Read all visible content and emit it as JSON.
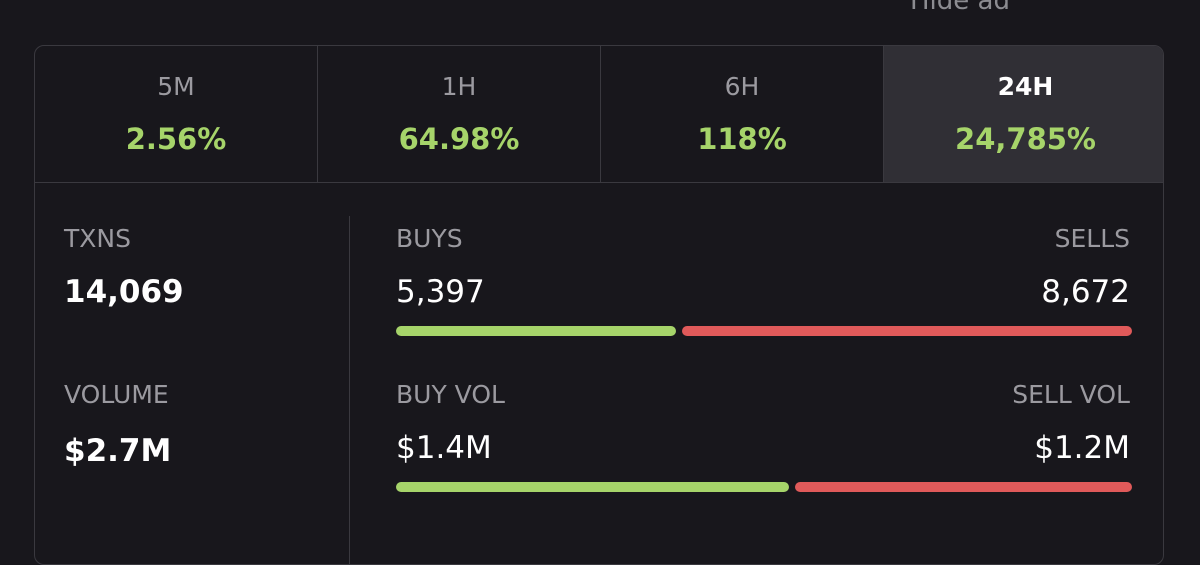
{
  "header": {
    "hide_ad": "Hide ad"
  },
  "tabs": [
    {
      "label": "5M",
      "value": "2.56%"
    },
    {
      "label": "1H",
      "value": "64.98%"
    },
    {
      "label": "6H",
      "value": "118%"
    },
    {
      "label": "24H",
      "value": "24,785%",
      "active": true
    }
  ],
  "stats": {
    "txns": {
      "label": "TXNS",
      "value": "14,069"
    },
    "volume": {
      "label": "VOLUME",
      "value": "$2.7M"
    },
    "buys": {
      "label": "BUYS",
      "value": "5,397"
    },
    "sells": {
      "label": "SELLS",
      "value": "8,672"
    },
    "buy_vol": {
      "label": "BUY VOL",
      "value": "$1.4M"
    },
    "sell_vol": {
      "label": "SELL VOL",
      "value": "$1.2M"
    }
  }
}
